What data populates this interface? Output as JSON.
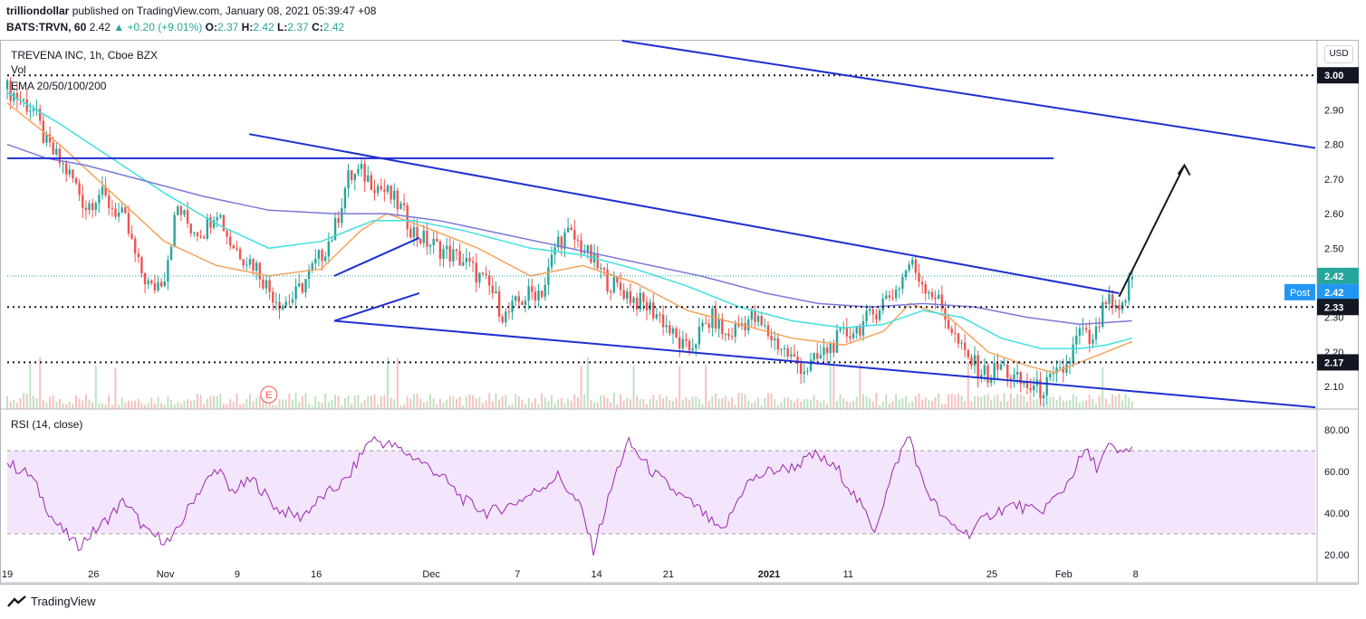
{
  "header": {
    "author": "trilliondollar",
    "published_text": "published on TradingView.com, January 08, 2021 05:39:47 +08",
    "symbol": "BATS:TRVN, 60",
    "last": "2.42",
    "change": "+0.20 (+9.01%)",
    "o_label": "O:",
    "o": "2.37",
    "h_label": "H:",
    "h": "2.42",
    "l_label": "L:",
    "l": "2.37",
    "c_label": "C:",
    "c": "2.42"
  },
  "legend": {
    "instrument": "TREVENA INC, 1h, Cboe BZX",
    "vol": "Vol",
    "ema": "EMA 20/50/100/200",
    "rsi": "RSI (14, close)"
  },
  "currency": "USD",
  "footer": {
    "brand": "TradingView"
  },
  "earnings_marker": "E",
  "colors": {
    "up": "#26a69a",
    "down": "#ef5350",
    "trendline": "#1f2fd1",
    "ema20": "#f7a35c",
    "ema50": "#3fe0e0",
    "ema100": "#7a79d9",
    "ema200": "#4b4bc4",
    "rsi_line": "#9c27b0",
    "rsi_band": "#f3e5fb"
  },
  "chart_data": [
    {
      "type": "line",
      "title": "TREVENA INC, 1h, Cboe BZX",
      "subtype": "candlestick",
      "x_ticks": [
        "19",
        "26",
        "Nov",
        "9",
        "16",
        "Dec",
        "7",
        "14",
        "21",
        "2021",
        "11",
        "25",
        "Feb",
        "8"
      ],
      "y_ticks": [
        "3.00",
        "2.90",
        "2.80",
        "2.70",
        "2.60",
        "2.50",
        "2.40",
        "2.30",
        "2.20",
        "2.10"
      ],
      "ylim": [
        2.035,
        3.1
      ],
      "price_labels": [
        {
          "value": 3.0,
          "text": "3.00",
          "style": "dotted-level"
        },
        {
          "value": 2.42,
          "text": "2.42",
          "style": "last-price"
        },
        {
          "value": 2.42,
          "text": "2.42",
          "style": "post",
          "prefix": "Post"
        },
        {
          "value": 2.33,
          "text": "2.33",
          "style": "dotted-level"
        },
        {
          "value": 2.17,
          "text": "2.17",
          "style": "dotted-level"
        }
      ],
      "horizontal_levels": [
        3.0,
        2.33,
        2.17
      ],
      "resistance_level": 2.76,
      "series": [
        {
          "name": "TRVN close (approx.)",
          "points": [
            [
              0,
              2.96
            ],
            [
              2,
              2.93
            ],
            [
              4,
              2.9
            ],
            [
              6,
              2.8
            ],
            [
              8,
              2.75
            ],
            [
              10,
              2.7
            ],
            [
              12,
              2.62
            ],
            [
              14,
              2.66
            ],
            [
              16,
              2.62
            ],
            [
              18,
              2.58
            ],
            [
              20,
              2.45
            ],
            [
              22,
              2.38
            ],
            [
              24,
              2.42
            ],
            [
              26,
              2.62
            ],
            [
              28,
              2.56
            ],
            [
              30,
              2.55
            ],
            [
              32,
              2.62
            ],
            [
              34,
              2.52
            ],
            [
              36,
              2.48
            ],
            [
              38,
              2.45
            ],
            [
              40,
              2.38
            ],
            [
              42,
              2.34
            ],
            [
              44,
              2.36
            ],
            [
              46,
              2.42
            ],
            [
              48,
              2.48
            ],
            [
              50,
              2.55
            ],
            [
              52,
              2.7
            ],
            [
              54,
              2.72
            ],
            [
              56,
              2.69
            ],
            [
              58,
              2.66
            ],
            [
              60,
              2.62
            ],
            [
              62,
              2.55
            ],
            [
              64,
              2.52
            ],
            [
              66,
              2.5
            ],
            [
              68,
              2.48
            ],
            [
              70,
              2.46
            ],
            [
              72,
              2.42
            ],
            [
              74,
              2.38
            ],
            [
              76,
              2.3
            ],
            [
              78,
              2.34
            ],
            [
              80,
              2.37
            ],
            [
              82,
              2.38
            ],
            [
              84,
              2.52
            ],
            [
              86,
              2.54
            ],
            [
              88,
              2.5
            ],
            [
              90,
              2.45
            ],
            [
              92,
              2.4
            ],
            [
              94,
              2.38
            ],
            [
              96,
              2.35
            ],
            [
              98,
              2.33
            ],
            [
              100,
              2.3
            ],
            [
              102,
              2.24
            ],
            [
              104,
              2.2
            ],
            [
              106,
              2.26
            ],
            [
              108,
              2.3
            ],
            [
              110,
              2.24
            ],
            [
              112,
              2.28
            ],
            [
              114,
              2.3
            ],
            [
              116,
              2.26
            ],
            [
              118,
              2.22
            ],
            [
              120,
              2.18
            ],
            [
              122,
              2.15
            ],
            [
              124,
              2.18
            ],
            [
              126,
              2.22
            ],
            [
              128,
              2.25
            ],
            [
              130,
              2.27
            ],
            [
              132,
              2.3
            ],
            [
              134,
              2.35
            ],
            [
              136,
              2.38
            ],
            [
              138,
              2.46
            ],
            [
              140,
              2.4
            ],
            [
              142,
              2.36
            ],
            [
              144,
              2.28
            ],
            [
              146,
              2.2
            ],
            [
              148,
              2.16
            ],
            [
              150,
              2.13
            ],
            [
              152,
              2.16
            ],
            [
              154,
              2.12
            ],
            [
              156,
              2.1
            ],
            [
              158,
              2.09
            ],
            [
              160,
              2.12
            ],
            [
              162,
              2.16
            ],
            [
              164,
              2.26
            ],
            [
              166,
              2.22
            ],
            [
              168,
              2.35
            ],
            [
              170,
              2.3
            ],
            [
              172,
              2.42
            ]
          ]
        },
        {
          "name": "EMA 20",
          "points": [
            [
              0,
              2.92
            ],
            [
              8,
              2.8
            ],
            [
              16,
              2.66
            ],
            [
              24,
              2.52
            ],
            [
              32,
              2.45
            ],
            [
              40,
              2.42
            ],
            [
              48,
              2.44
            ],
            [
              54,
              2.55
            ],
            [
              58,
              2.6
            ],
            [
              64,
              2.56
            ],
            [
              72,
              2.5
            ],
            [
              80,
              2.42
            ],
            [
              88,
              2.45
            ],
            [
              96,
              2.4
            ],
            [
              104,
              2.32
            ],
            [
              112,
              2.28
            ],
            [
              120,
              2.24
            ],
            [
              128,
              2.22
            ],
            [
              134,
              2.26
            ],
            [
              138,
              2.34
            ],
            [
              144,
              2.3
            ],
            [
              150,
              2.2
            ],
            [
              156,
              2.16
            ],
            [
              160,
              2.14
            ],
            [
              164,
              2.17
            ],
            [
              168,
              2.2
            ],
            [
              172,
              2.23
            ]
          ]
        },
        {
          "name": "EMA 50",
          "points": [
            [
              0,
              2.95
            ],
            [
              8,
              2.86
            ],
            [
              16,
              2.76
            ],
            [
              24,
              2.66
            ],
            [
              32,
              2.57
            ],
            [
              40,
              2.5
            ],
            [
              48,
              2.52
            ],
            [
              56,
              2.58
            ],
            [
              62,
              2.58
            ],
            [
              70,
              2.55
            ],
            [
              80,
              2.5
            ],
            [
              88,
              2.48
            ],
            [
              96,
              2.44
            ],
            [
              104,
              2.39
            ],
            [
              112,
              2.33
            ],
            [
              120,
              2.29
            ],
            [
              128,
              2.27
            ],
            [
              134,
              2.28
            ],
            [
              140,
              2.32
            ],
            [
              146,
              2.3
            ],
            [
              152,
              2.24
            ],
            [
              158,
              2.21
            ],
            [
              164,
              2.21
            ],
            [
              168,
              2.22
            ],
            [
              172,
              2.24
            ]
          ]
        },
        {
          "name": "EMA 100",
          "points": [
            [
              0,
              2.8
            ],
            [
              6,
              2.76
            ],
            [
              12,
              2.74
            ],
            [
              20,
              2.7
            ],
            [
              30,
              2.65
            ],
            [
              40,
              2.61
            ],
            [
              50,
              2.6
            ],
            [
              58,
              2.6
            ],
            [
              66,
              2.58
            ],
            [
              76,
              2.54
            ],
            [
              86,
              2.5
            ],
            [
              96,
              2.46
            ],
            [
              106,
              2.42
            ],
            [
              116,
              2.37
            ],
            [
              124,
              2.34
            ],
            [
              132,
              2.33
            ],
            [
              140,
              2.34
            ],
            [
              148,
              2.33
            ],
            [
              156,
              2.3
            ],
            [
              164,
              2.28
            ],
            [
              172,
              2.29
            ]
          ]
        }
      ],
      "trendlines": [
        {
          "from": [
            37,
            2.83
          ],
          "to": [
            170,
            2.37
          ],
          "role": "descending-channel-upper"
        },
        {
          "from": [
            50,
            2.29
          ],
          "to": [
            200,
            2.04
          ],
          "role": "descending-channel-lower"
        },
        {
          "from": [
            50,
            2.42
          ],
          "to": [
            63,
            2.53
          ],
          "role": "flag-upper"
        },
        {
          "from": [
            50,
            2.29
          ],
          "to": [
            63,
            2.37
          ],
          "role": "flag-lower"
        },
        {
          "from": [
            170,
            2.36
          ],
          "to": [
            180,
            2.74
          ],
          "role": "projection-arrow"
        }
      ]
    },
    {
      "type": "line",
      "title": "RSI (14, close)",
      "y_ticks": [
        "80.00",
        "60.00",
        "40.00",
        "20.00"
      ],
      "ylim": [
        16,
        90
      ],
      "bands": [
        30,
        70
      ],
      "series": [
        {
          "name": "RSI",
          "points": [
            [
              0,
              64
            ],
            [
              4,
              58
            ],
            [
              8,
              36
            ],
            [
              12,
              24
            ],
            [
              16,
              34
            ],
            [
              20,
              46
            ],
            [
              24,
              30
            ],
            [
              28,
              26
            ],
            [
              32,
              48
            ],
            [
              36,
              62
            ],
            [
              38,
              50
            ],
            [
              42,
              56
            ],
            [
              46,
              42
            ],
            [
              50,
              38
            ],
            [
              54,
              48
            ],
            [
              58,
              56
            ],
            [
              62,
              76
            ],
            [
              66,
              72
            ],
            [
              70,
              66
            ],
            [
              74,
              58
            ],
            [
              78,
              46
            ],
            [
              82,
              40
            ],
            [
              86,
              44
            ],
            [
              90,
              50
            ],
            [
              94,
              58
            ],
            [
              98,
              42
            ],
            [
              100,
              22
            ],
            [
              104,
              60
            ],
            [
              106,
              74
            ],
            [
              110,
              60
            ],
            [
              114,
              50
            ],
            [
              118,
              42
            ],
            [
              122,
              30
            ],
            [
              126,
              54
            ],
            [
              130,
              60
            ],
            [
              134,
              62
            ],
            [
              138,
              68
            ],
            [
              142,
              60
            ],
            [
              146,
              42
            ],
            [
              148,
              32
            ],
            [
              152,
              66
            ],
            [
              154,
              78
            ],
            [
              156,
              56
            ],
            [
              160,
              36
            ],
            [
              164,
              30
            ],
            [
              168,
              40
            ],
            [
              172,
              44
            ],
            [
              176,
              40
            ],
            [
              180,
              50
            ],
            [
              184,
              70
            ],
            [
              186,
              62
            ],
            [
              188,
              72
            ],
            [
              190,
              68
            ],
            [
              192,
              72
            ]
          ]
        }
      ]
    }
  ]
}
